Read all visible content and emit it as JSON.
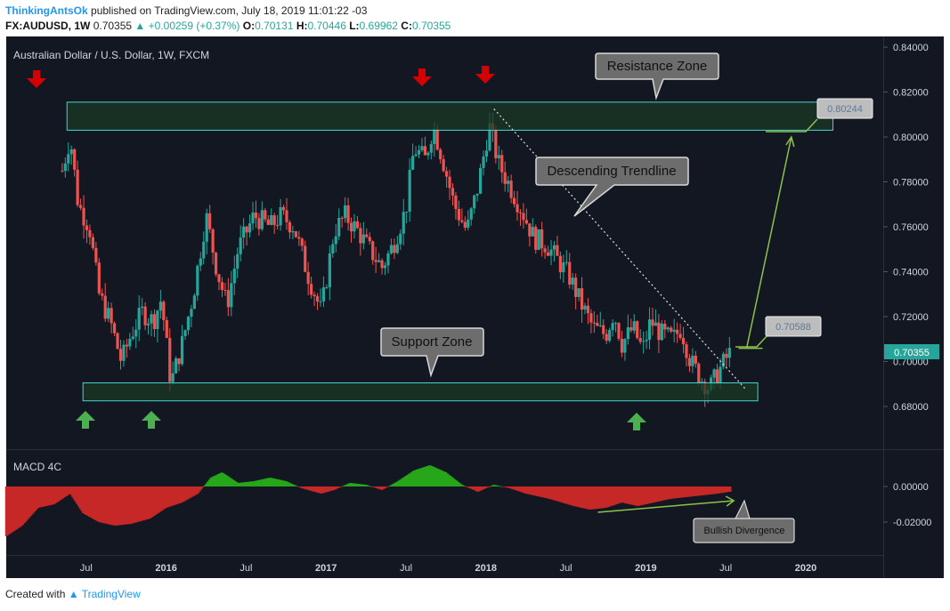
{
  "header": {
    "author": "ThinkingAntsOk",
    "published": "published on TradingView.com, July 18, 2019 11:01:22 -03",
    "symbol": "FX:AUDUSD, 1W",
    "last": "0.70355",
    "change": "▲ +0.00259 (+0.37%)",
    "o_label": "O:",
    "o": "0.70131",
    "h_label": "H:",
    "h": "0.70446",
    "l_label": "L:",
    "l": "0.69962",
    "c_label": "C:",
    "c": "0.70355"
  },
  "footer": {
    "created": "Created with",
    "brand": "TradingView"
  },
  "colors": {
    "background": "#131722",
    "up": "#26a69a",
    "down": "#ef5350",
    "zone_fill": "#1b3a26",
    "zone_border": "#46d4d0",
    "arrow_down": "#d50000",
    "arrow_up": "#4caf50",
    "annotation": "#8bc34a",
    "macd_up": "#26a619",
    "macd_down": "#c62828"
  },
  "chart_data": {
    "type": "candlestick",
    "title": "Australian Dollar / U.S. Dollar, 1W, FXCM",
    "y_ticks": [
      "0.84000",
      "0.82000",
      "0.80000",
      "0.78000",
      "0.76000",
      "0.74000",
      "0.72000",
      "0.70000",
      "0.68000"
    ],
    "ylim": [
      0.665,
      0.845
    ],
    "x_ticks": [
      "Jul",
      "2016",
      "Jul",
      "2017",
      "Jul",
      "2018",
      "Jul",
      "2019",
      "Jul",
      "2020"
    ],
    "close_path": [
      [
        2015.35,
        0.785
      ],
      [
        2015.4,
        0.8
      ],
      [
        2015.45,
        0.77
      ],
      [
        2015.52,
        0.76
      ],
      [
        2015.58,
        0.73
      ],
      [
        2015.65,
        0.718
      ],
      [
        2015.72,
        0.7
      ],
      [
        2015.78,
        0.712
      ],
      [
        2015.85,
        0.722
      ],
      [
        2015.92,
        0.718
      ],
      [
        2015.97,
        0.728
      ],
      [
        2016.03,
        0.69
      ],
      [
        2016.1,
        0.708
      ],
      [
        2016.17,
        0.73
      ],
      [
        2016.25,
        0.765
      ],
      [
        2016.32,
        0.74
      ],
      [
        2016.38,
        0.725
      ],
      [
        2016.45,
        0.75
      ],
      [
        2016.55,
        0.765
      ],
      [
        2016.65,
        0.76
      ],
      [
        2016.72,
        0.765
      ],
      [
        2016.8,
        0.76
      ],
      [
        2016.88,
        0.74
      ],
      [
        2016.97,
        0.722
      ],
      [
        2017.05,
        0.758
      ],
      [
        2017.12,
        0.765
      ],
      [
        2017.2,
        0.758
      ],
      [
        2017.27,
        0.75
      ],
      [
        2017.35,
        0.742
      ],
      [
        2017.42,
        0.752
      ],
      [
        2017.5,
        0.768
      ],
      [
        2017.55,
        0.795
      ],
      [
        2017.62,
        0.79
      ],
      [
        2017.67,
        0.805
      ],
      [
        2017.73,
        0.79
      ],
      [
        2017.8,
        0.77
      ],
      [
        2017.88,
        0.758
      ],
      [
        2017.95,
        0.778
      ],
      [
        2018.02,
        0.805
      ],
      [
        2018.08,
        0.788
      ],
      [
        2018.15,
        0.778
      ],
      [
        2018.22,
        0.768
      ],
      [
        2018.3,
        0.755
      ],
      [
        2018.38,
        0.752
      ],
      [
        2018.45,
        0.745
      ],
      [
        2018.52,
        0.738
      ],
      [
        2018.6,
        0.725
      ],
      [
        2018.67,
        0.715
      ],
      [
        2018.75,
        0.712
      ],
      [
        2018.8,
        0.722
      ],
      [
        2018.85,
        0.708
      ],
      [
        2018.92,
        0.715
      ],
      [
        2018.98,
        0.705
      ],
      [
        2019.03,
        0.718
      ],
      [
        2019.1,
        0.712
      ],
      [
        2019.17,
        0.71
      ],
      [
        2019.22,
        0.715
      ],
      [
        2019.28,
        0.7
      ],
      [
        2019.35,
        0.692
      ],
      [
        2019.4,
        0.688
      ],
      [
        2019.45,
        0.695
      ],
      [
        2019.52,
        0.7035
      ]
    ],
    "resistance_zone": {
      "label": "Resistance Zone",
      "range": [
        0.803,
        0.8155
      ]
    },
    "support_zone": {
      "label": "Support Zone",
      "range": [
        0.6825,
        0.6905
      ]
    },
    "trendline": {
      "label": "Descending Trendline",
      "from": [
        2018.05,
        0.8125
      ],
      "to": [
        2019.62,
        0.688
      ]
    },
    "price_labels": [
      {
        "text": "0.80244",
        "value": 0.80244
      },
      {
        "text": "0.70588",
        "value": 0.70588
      }
    ],
    "current_price": "0.70355",
    "macd": {
      "title": "MACD 4C",
      "y_ticks": [
        "0.00000",
        "-0.02000"
      ],
      "ylim": [
        -0.032,
        0.014
      ],
      "histogram_path": [
        [
          2015.0,
          -0.028
        ],
        [
          2015.1,
          -0.022
        ],
        [
          2015.2,
          -0.012
        ],
        [
          2015.3,
          -0.01
        ],
        [
          2015.4,
          -0.004
        ],
        [
          2015.48,
          -0.015
        ],
        [
          2015.58,
          -0.02
        ],
        [
          2015.68,
          -0.022
        ],
        [
          2015.78,
          -0.021
        ],
        [
          2015.9,
          -0.018
        ],
        [
          2016.0,
          -0.012
        ],
        [
          2016.1,
          -0.009
        ],
        [
          2016.2,
          -0.004
        ],
        [
          2016.28,
          0.005
        ],
        [
          2016.35,
          0.008
        ],
        [
          2016.45,
          0.002
        ],
        [
          2016.55,
          0.003
        ],
        [
          2016.65,
          0.005
        ],
        [
          2016.75,
          0.003
        ],
        [
          2016.85,
          -0.001
        ],
        [
          2016.97,
          -0.004
        ],
        [
          2017.05,
          -0.002
        ],
        [
          2017.15,
          0.002
        ],
        [
          2017.25,
          0.001
        ],
        [
          2017.35,
          -0.002
        ],
        [
          2017.45,
          0.003
        ],
        [
          2017.55,
          0.009
        ],
        [
          2017.65,
          0.012
        ],
        [
          2017.75,
          0.008
        ],
        [
          2017.85,
          0.001
        ],
        [
          2017.95,
          -0.003
        ],
        [
          2018.05,
          0.001
        ],
        [
          2018.15,
          -0.001
        ],
        [
          2018.25,
          -0.004
        ],
        [
          2018.4,
          -0.007
        ],
        [
          2018.55,
          -0.011
        ],
        [
          2018.65,
          -0.013
        ],
        [
          2018.75,
          -0.012
        ],
        [
          2018.85,
          -0.009
        ],
        [
          2018.95,
          -0.011
        ],
        [
          2019.05,
          -0.009
        ],
        [
          2019.15,
          -0.007
        ],
        [
          2019.25,
          -0.006
        ],
        [
          2019.35,
          -0.005
        ],
        [
          2019.45,
          -0.004
        ],
        [
          2019.52,
          -0.003
        ]
      ],
      "divergence_label": "Bullish Divergence"
    }
  }
}
